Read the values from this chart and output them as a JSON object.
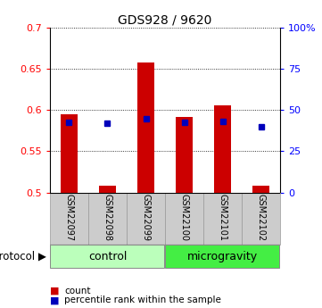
{
  "title": "GDS928 / 9620",
  "samples": [
    "GSM22097",
    "GSM22098",
    "GSM22099",
    "GSM22100",
    "GSM22101",
    "GSM22102"
  ],
  "bar_top": [
    0.595,
    0.508,
    0.658,
    0.592,
    0.606,
    0.508
  ],
  "bar_bottom": [
    0.5,
    0.5,
    0.5,
    0.5,
    0.5,
    0.5
  ],
  "percentile": [
    0.585,
    0.584,
    0.59,
    0.585,
    0.586,
    0.58
  ],
  "ylim": [
    0.5,
    0.7
  ],
  "yticks_left": [
    0.5,
    0.55,
    0.6,
    0.65,
    0.7
  ],
  "yticks_right_labels": [
    "0",
    "25",
    "50",
    "75",
    "100%"
  ],
  "bar_color": "#cc0000",
  "percentile_color": "#0000bb",
  "group_color_control": "#bbffbb",
  "group_color_microgravity": "#44ee44",
  "legend_label_1": "count",
  "legend_label_2": "percentile rank within the sample",
  "protocol_label": "protocol",
  "bar_width": 0.45
}
